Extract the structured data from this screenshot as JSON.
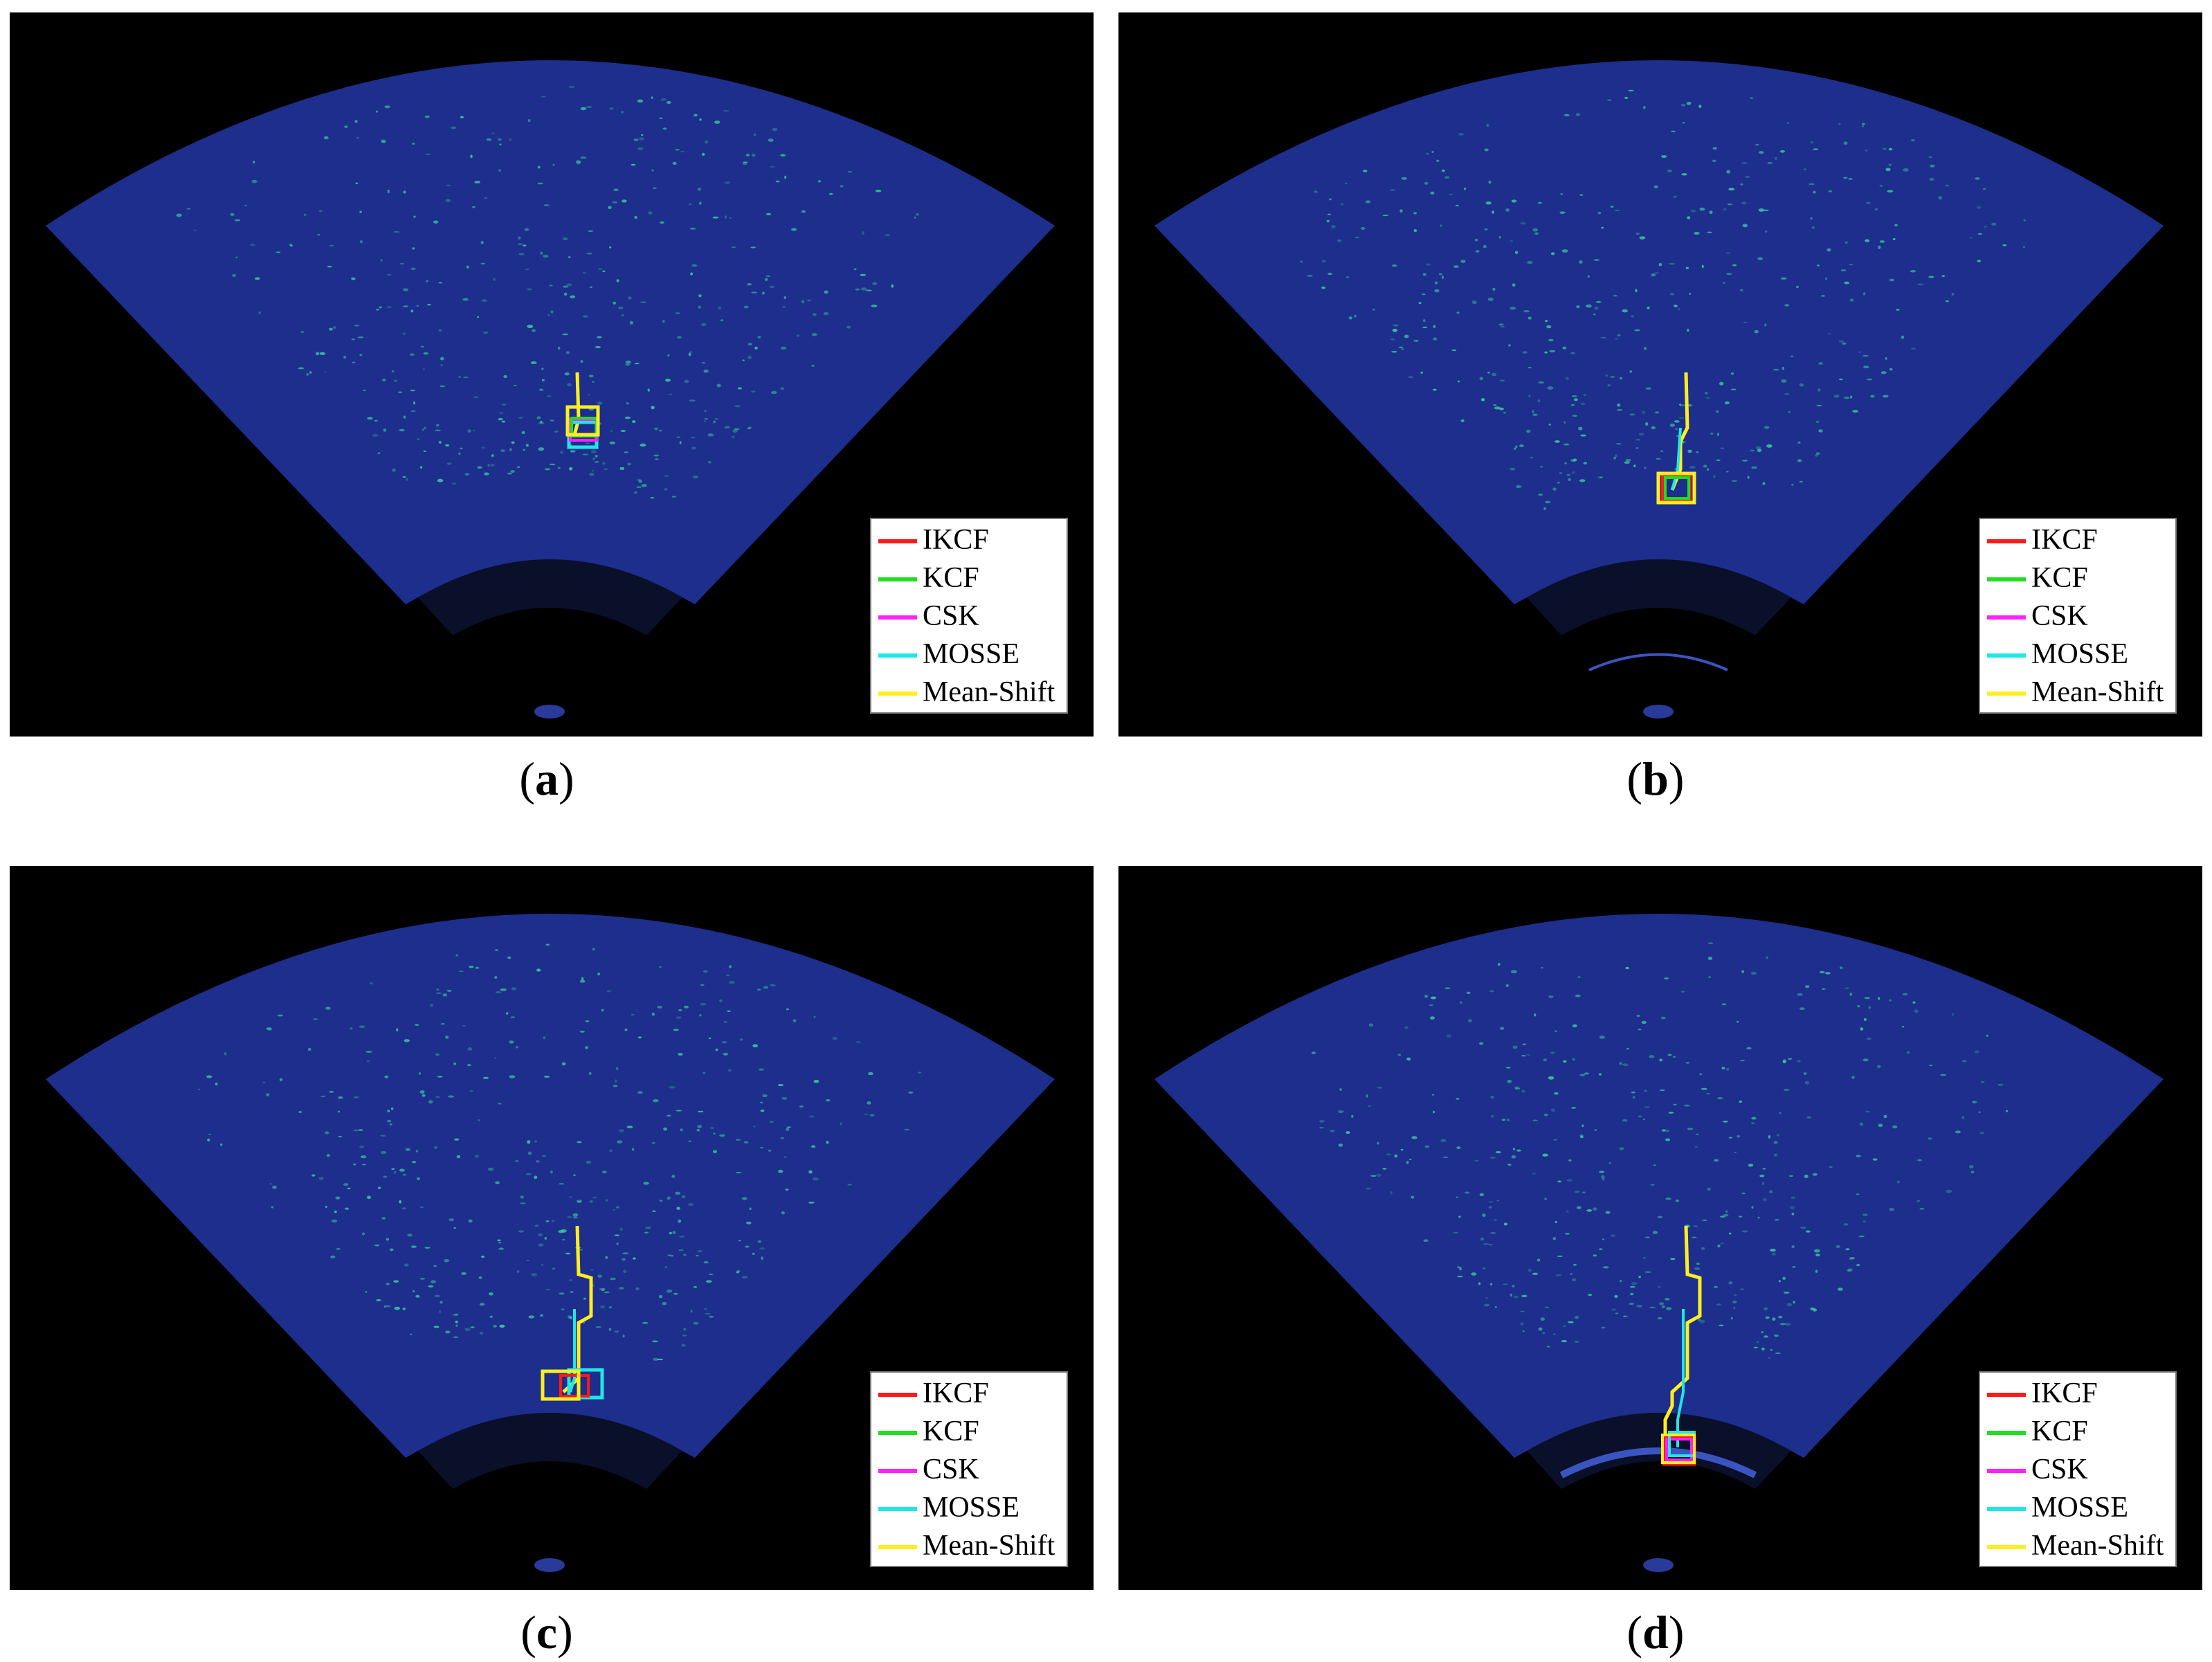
{
  "panels": [
    {
      "id": "a",
      "caption_open": "(",
      "caption_letter": "a",
      "caption_close": ")"
    },
    {
      "id": "b",
      "caption_open": "(",
      "caption_letter": "b",
      "caption_close": ")"
    },
    {
      "id": "c",
      "caption_open": "(",
      "caption_letter": "c",
      "caption_close": ")"
    },
    {
      "id": "d",
      "caption_open": "(",
      "caption_letter": "d",
      "caption_close": ")"
    }
  ],
  "legend": [
    {
      "label": "IKCF",
      "color": "#ff1a1a"
    },
    {
      "label": "KCF",
      "color": "#22dd22"
    },
    {
      "label": "CSK",
      "color": "#ff22ff"
    },
    {
      "label": "MOSSE",
      "color": "#22e5e5"
    },
    {
      "label": "Mean-Shift",
      "color": "#ffee22"
    }
  ],
  "colors": {
    "sonar_fill": "#1d2e8c",
    "speckle": "#3fd0a0",
    "background": "#000000"
  }
}
